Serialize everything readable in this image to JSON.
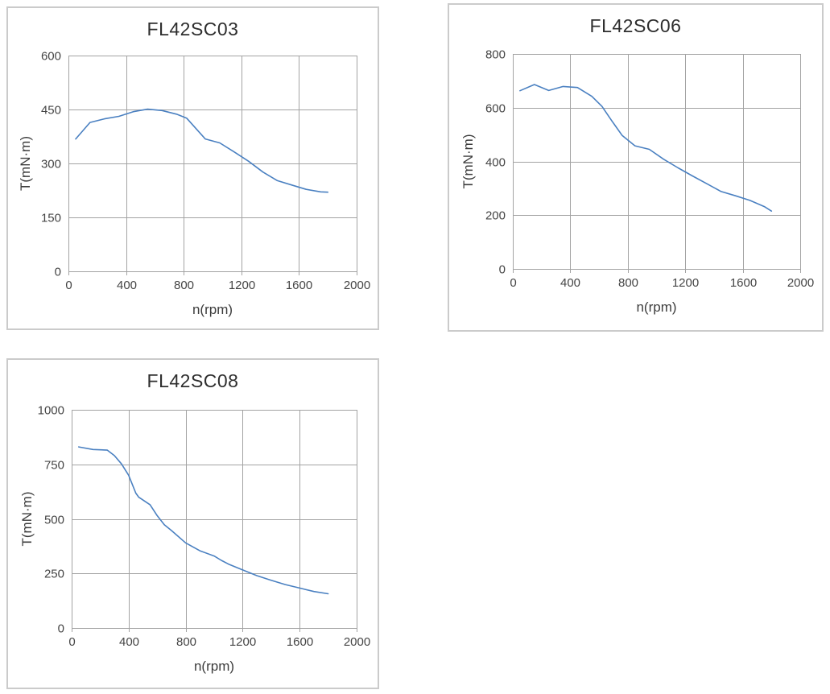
{
  "page": {
    "background_color": "#ffffff",
    "description_titles": [
      "FL42SC03",
      "FL42SC06",
      "FL42SC08"
    ]
  },
  "chart_data": [
    {
      "type": "line",
      "title": "FL42SC03",
      "xlabel": "n(rpm)",
      "ylabel": "T(mN·m)",
      "xlim": [
        0,
        2000
      ],
      "ylim": [
        0,
        600
      ],
      "xticks": [
        0,
        400,
        800,
        1200,
        1600,
        2000
      ],
      "yticks": [
        0,
        150,
        300,
        450,
        600
      ],
      "grid": true,
      "legend": "none",
      "line_color": "#4a80c1",
      "grid_color": "#a3a3a3",
      "x": [
        50,
        150,
        250,
        350,
        450,
        550,
        650,
        750,
        820,
        950,
        1050,
        1150,
        1250,
        1350,
        1450,
        1550,
        1650,
        1750,
        1800
      ],
      "y": [
        368,
        414,
        424,
        431,
        444,
        451,
        447,
        437,
        426,
        368,
        357,
        332,
        306,
        276,
        252,
        240,
        228,
        221,
        220
      ]
    },
    {
      "type": "line",
      "title": "FL42SC06",
      "xlabel": "n(rpm)",
      "ylabel": "T(mN·m)",
      "xlim": [
        0,
        2000
      ],
      "ylim": [
        0,
        800
      ],
      "xticks": [
        0,
        400,
        800,
        1200,
        1600,
        2000
      ],
      "yticks": [
        0,
        200,
        400,
        600,
        800
      ],
      "grid": true,
      "legend": "none",
      "line_color": "#4a80c1",
      "grid_color": "#a3a3a3",
      "x": [
        50,
        150,
        250,
        350,
        450,
        550,
        620,
        690,
        760,
        850,
        950,
        1050,
        1150,
        1250,
        1350,
        1450,
        1550,
        1650,
        1750,
        1800
      ],
      "y": [
        663,
        686,
        664,
        679,
        675,
        642,
        605,
        550,
        497,
        458,
        445,
        408,
        376,
        346,
        317,
        288,
        272,
        255,
        232,
        215
      ]
    },
    {
      "type": "line",
      "title": "FL42SC08",
      "xlabel": "n(rpm)",
      "ylabel": "T(mN·m)",
      "xlim": [
        0,
        2000
      ],
      "ylim": [
        0,
        1000
      ],
      "xticks": [
        0,
        400,
        800,
        1200,
        1600,
        2000
      ],
      "yticks": [
        0,
        250,
        500,
        750,
        1000
      ],
      "grid": true,
      "legend": "none",
      "line_color": "#4a80c1",
      "grid_color": "#a3a3a3",
      "x": [
        50,
        150,
        250,
        300,
        350,
        400,
        450,
        470,
        550,
        600,
        650,
        700,
        800,
        900,
        1000,
        1050,
        1100,
        1200,
        1300,
        1400,
        1500,
        1600,
        1700,
        1800
      ],
      "y": [
        830,
        818,
        815,
        790,
        752,
        700,
        618,
        600,
        565,
        515,
        473,
        447,
        390,
        354,
        330,
        310,
        293,
        266,
        240,
        219,
        199,
        183,
        167,
        157
      ]
    }
  ]
}
